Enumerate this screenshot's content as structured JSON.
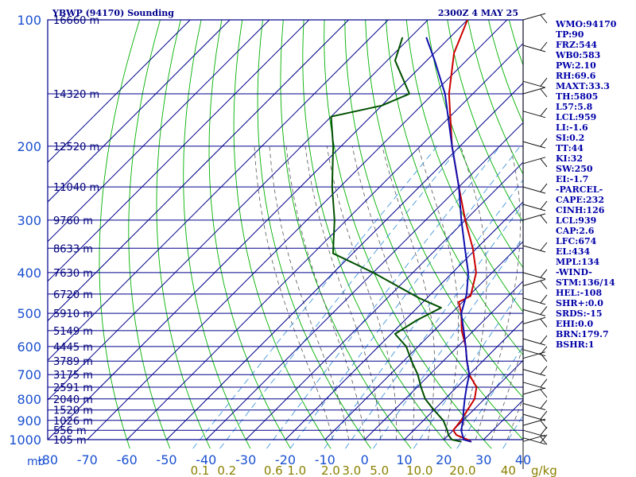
{
  "header": {
    "station": "YBWP (94170) Sounding",
    "time": "2300Z  4 MAY 25"
  },
  "colors": {
    "grid": "#00008c",
    "dry_adiabat": "#00b000",
    "moist_adiabat": "#555555",
    "mixing_ratio": "#2e8bd8",
    "temperature": "#cc0000",
    "dewpoint": "#005000",
    "parcel": "#1010b0",
    "stats_text": "#0000a8",
    "mr_labels": "#8b8000"
  },
  "chart_data": {
    "type": "skew-t",
    "pressure_axis_label": "mb",
    "ylim": [
      1000,
      100
    ],
    "xlim": [
      -80,
      40
    ],
    "pressure_ticks": [
      100,
      200,
      300,
      400,
      500,
      600,
      700,
      800,
      900,
      1000
    ],
    "temperature_ticks": [
      "-80",
      "-70",
      "-60",
      "-50",
      "-40",
      "-30",
      "-20",
      "-10",
      "0",
      "10",
      "20",
      "30",
      "40"
    ],
    "height_labels": [
      {
        "p": 100,
        "label": "16660 m"
      },
      {
        "p": 150,
        "label": "14320 m"
      },
      {
        "p": 200,
        "label": "12520 m"
      },
      {
        "p": 250,
        "label": "11040 m"
      },
      {
        "p": 300,
        "label": "9760 m"
      },
      {
        "p": 350,
        "label": "8633 m"
      },
      {
        "p": 400,
        "label": "7630 m"
      },
      {
        "p": 450,
        "label": "6720 m"
      },
      {
        "p": 500,
        "label": "5910 m"
      },
      {
        "p": 550,
        "label": "5149 m"
      },
      {
        "p": 600,
        "label": "4445 m"
      },
      {
        "p": 650,
        "label": "3789 m"
      },
      {
        "p": 700,
        "label": "3175 m"
      },
      {
        "p": 750,
        "label": "2591 m"
      },
      {
        "p": 800,
        "label": "2040 m"
      },
      {
        "p": 850,
        "label": "1520 m"
      },
      {
        "p": 900,
        "label": "1026 m"
      },
      {
        "p": 950,
        "label": "556 m"
      },
      {
        "p": 1000,
        "label": "105 m"
      }
    ],
    "mixing_ratio_labels": [
      "0.1",
      "0.2",
      "0.6",
      "1.0",
      "2.0",
      "3.0",
      "5.0",
      "10.0",
      "20.0",
      "40",
      "g/kg"
    ],
    "temperature": [
      {
        "p": 1012,
        "t": 27.5
      },
      {
        "p": 1000,
        "t": 26.0
      },
      {
        "p": 975,
        "t": 22.0
      },
      {
        "p": 950,
        "t": 20.0
      },
      {
        "p": 900,
        "t": 19.5
      },
      {
        "p": 850,
        "t": 18.5
      },
      {
        "p": 800,
        "t": 17.5
      },
      {
        "p": 750,
        "t": 15.0
      },
      {
        "p": 700,
        "t": 10.0
      },
      {
        "p": 650,
        "t": 6.0
      },
      {
        "p": 600,
        "t": 2.0
      },
      {
        "p": 550,
        "t": -3.0
      },
      {
        "p": 500,
        "t": -7.5
      },
      {
        "p": 470,
        "t": -11.0
      },
      {
        "p": 455,
        "t": -9.5
      },
      {
        "p": 400,
        "t": -14.0
      },
      {
        "p": 350,
        "t": -21.0
      },
      {
        "p": 300,
        "t": -30.0
      },
      {
        "p": 250,
        "t": -40.0
      },
      {
        "p": 200,
        "t": -52.0
      },
      {
        "p": 150,
        "t": -66.0
      },
      {
        "p": 120,
        "t": -75.0
      },
      {
        "p": 100,
        "t": -80.0
      }
    ],
    "dewpoint": [
      {
        "p": 1012,
        "t": 25.0
      },
      {
        "p": 1000,
        "t": 22.0
      },
      {
        "p": 975,
        "t": 20.0
      },
      {
        "p": 950,
        "t": 18.5
      },
      {
        "p": 900,
        "t": 15.0
      },
      {
        "p": 850,
        "t": 10.0
      },
      {
        "p": 800,
        "t": 5.0
      },
      {
        "p": 750,
        "t": 1.0
      },
      {
        "p": 700,
        "t": -3.0
      },
      {
        "p": 650,
        "t": -8.0
      },
      {
        "p": 600,
        "t": -13.0
      },
      {
        "p": 560,
        "t": -19.0
      },
      {
        "p": 520,
        "t": -17.0
      },
      {
        "p": 485,
        "t": -14.0
      },
      {
        "p": 460,
        "t": -22.0
      },
      {
        "p": 400,
        "t": -40.0
      },
      {
        "p": 360,
        "t": -55.0
      },
      {
        "p": 300,
        "t": -63.0
      },
      {
        "p": 250,
        "t": -72.0
      },
      {
        "p": 200,
        "t": -82.0
      },
      {
        "p": 170,
        "t": -90.0
      },
      {
        "p": 160,
        "t": -80.0
      },
      {
        "p": 150,
        "t": -76.0
      },
      {
        "p": 125,
        "t": -88.0
      },
      {
        "p": 110,
        "t": -92.0
      }
    ],
    "parcel": [
      {
        "p": 1012,
        "t": 27.5
      },
      {
        "p": 1000,
        "t": 25.0
      },
      {
        "p": 950,
        "t": 22.0
      },
      {
        "p": 900,
        "t": 20.0
      },
      {
        "p": 850,
        "t": 17.5
      },
      {
        "p": 800,
        "t": 15.0
      },
      {
        "p": 750,
        "t": 12.5
      },
      {
        "p": 700,
        "t": 10.0
      },
      {
        "p": 650,
        "t": 6.0
      },
      {
        "p": 600,
        "t": 2.0
      },
      {
        "p": 550,
        "t": -2.5
      },
      {
        "p": 500,
        "t": -7.5
      },
      {
        "p": 450,
        "t": -11.0
      },
      {
        "p": 400,
        "t": -16.0
      },
      {
        "p": 350,
        "t": -23.0
      },
      {
        "p": 300,
        "t": -31.0
      },
      {
        "p": 250,
        "t": -40.0
      },
      {
        "p": 200,
        "t": -52.0
      },
      {
        "p": 150,
        "t": -67.0
      },
      {
        "p": 125,
        "t": -78.0
      },
      {
        "p": 110,
        "t": -86.0
      }
    ],
    "wind_barb_pressures": [
      100,
      115,
      140,
      150,
      165,
      195,
      220,
      250,
      275,
      300,
      345,
      400,
      430,
      460,
      490,
      530,
      575,
      610,
      640,
      680,
      730,
      780,
      820,
      870,
      925,
      950,
      990,
      1010
    ]
  },
  "stats": [
    "WMO:94170",
    "TP:90",
    "FRZ:544",
    "WB0:583",
    "PW:2.10",
    "RH:69.6",
    "MAXT:33.3",
    "TH:5805",
    "L57:5.8",
    "LCL:959",
    "LI:-1.6",
    "SI:0.2",
    "TT:44",
    "KI:32",
    "SW:250",
    "EI:-1.7",
    "-PARCEL-",
    "CAPE:232",
    "CINH:126",
    "LCL:939",
    "CAP:2.6",
    "LFC:674",
    "EL:434",
    "MPL:134",
    "-WIND-",
    "STM:136/14",
    "HEL:-108",
    "SHR+:0.0",
    "SRDS:-15",
    "EHI:0.0",
    "BRN:179.7",
    "BSHR:1"
  ]
}
